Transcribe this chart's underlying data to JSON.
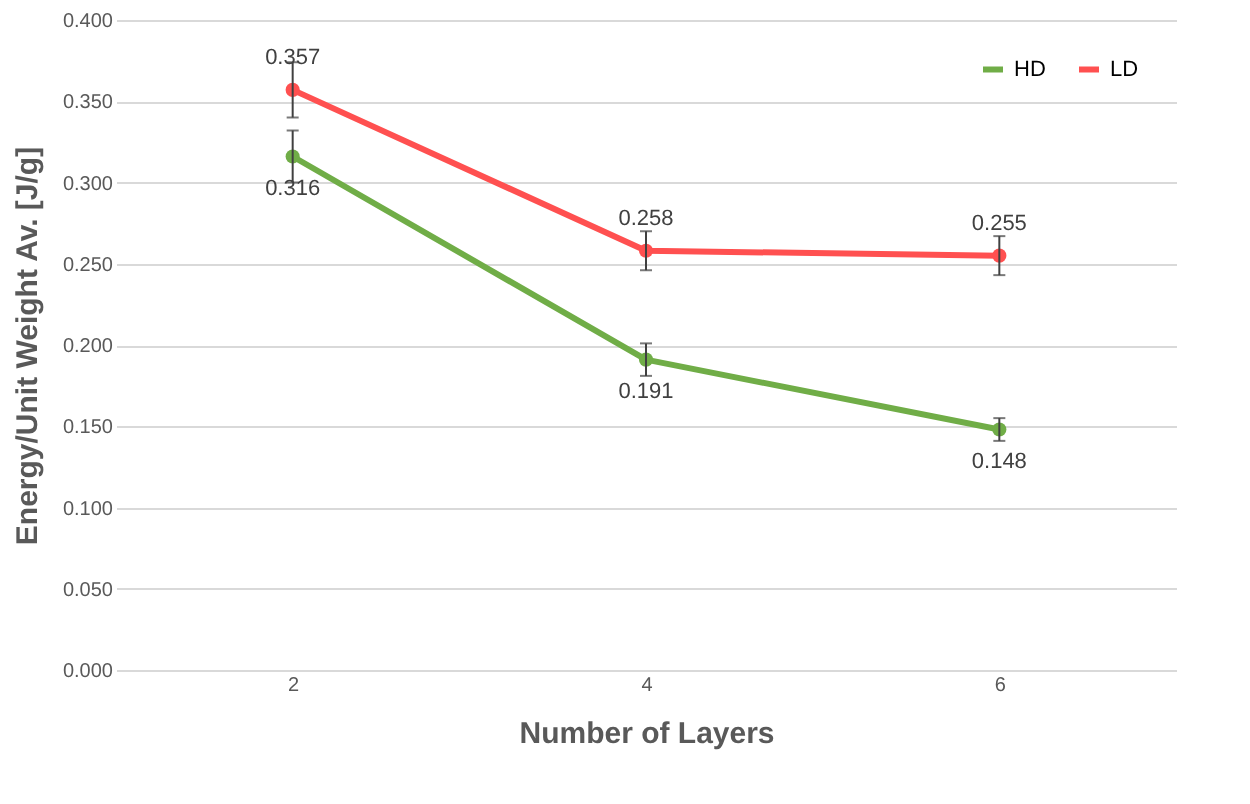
{
  "chart_data": {
    "type": "line",
    "xlabel": "Number of Layers",
    "ylabel": "Energy/Unit Weight Av. [J/g]",
    "categories": [
      "2",
      "4",
      "6"
    ],
    "series": [
      {
        "name": "HD",
        "color": "#70ad47",
        "values": [
          0.316,
          0.191,
          0.148
        ],
        "errors": [
          0.016,
          0.01,
          0.007
        ]
      },
      {
        "name": "LD",
        "color": "#ff5050",
        "values": [
          0.357,
          0.258,
          0.255
        ],
        "errors": [
          0.017,
          0.012,
          0.012
        ]
      }
    ],
    "ylim": [
      0,
      0.4
    ],
    "yticks": [
      {
        "value": 0,
        "label": "0.000"
      },
      {
        "value": 0.05,
        "label": "0.050"
      },
      {
        "value": 0.1,
        "label": "0.100"
      },
      {
        "value": 0.15,
        "label": "0.150"
      },
      {
        "value": 0.2,
        "label": "0.200"
      },
      {
        "value": 0.25,
        "label": "0.250"
      },
      {
        "value": 0.3,
        "label": "0.300"
      },
      {
        "value": 0.35,
        "label": "0.350"
      },
      {
        "value": 0.4,
        "label": "0.400"
      }
    ],
    "grid": "y",
    "legend": "top right",
    "marker": "circle",
    "line_style": "solid",
    "data_labels": true
  }
}
